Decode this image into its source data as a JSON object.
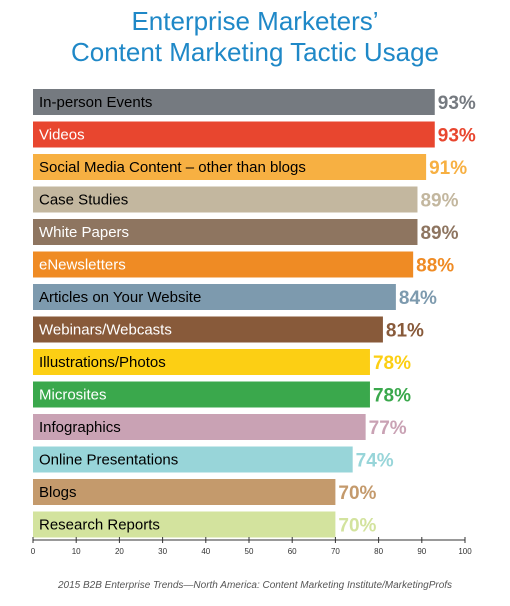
{
  "chart_data": {
    "type": "bar",
    "orientation": "horizontal",
    "title_lines": [
      "Enterprise Marketers’",
      "Content Marketing Tactic Usage"
    ],
    "categories": [
      "In-person Events",
      "Videos",
      "Social Media Content – other than blogs",
      "Case Studies",
      "White Papers",
      "eNewsletters",
      "Articles on Your Website",
      "Webinars/Webcasts",
      "Illustrations/Photos",
      "Microsites",
      "Infographics",
      "Online Presentations",
      "Blogs",
      "Research Reports"
    ],
    "values": [
      93,
      93,
      91,
      89,
      89,
      88,
      84,
      81,
      78,
      78,
      77,
      74,
      70,
      70
    ],
    "value_labels": [
      "93%",
      "93%",
      "91%",
      "89%",
      "89%",
      "88%",
      "84%",
      "81%",
      "78%",
      "78%",
      "77%",
      "74%",
      "70%",
      "70%"
    ],
    "bar_colors": [
      "#757a80",
      "#e8462f",
      "#f7b042",
      "#c3b79f",
      "#8e7560",
      "#ef8b24",
      "#7d9aae",
      "#885a3a",
      "#fccf14",
      "#3aa84c",
      "#c9a2b4",
      "#98d5d9",
      "#c49a6c",
      "#d3e39e"
    ],
    "label_text_colors": [
      "#000000",
      "#ffffff",
      "#000000",
      "#000000",
      "#ffffff",
      "#ffffff",
      "#000000",
      "#ffffff",
      "#000000",
      "#ffffff",
      "#000000",
      "#000000",
      "#000000",
      "#000000"
    ],
    "xlim": [
      0,
      100
    ],
    "xticks": [
      0,
      10,
      20,
      30,
      40,
      50,
      60,
      70,
      80,
      90,
      100
    ],
    "grid": false,
    "source": "2015 B2B Enterprise Trends—North America: Content Marketing Institute/MarketingProfs"
  }
}
